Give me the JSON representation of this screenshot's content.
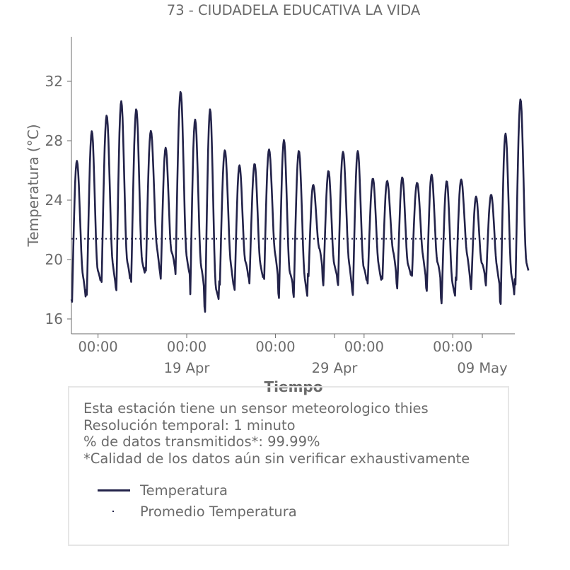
{
  "chart_data": {
    "type": "line",
    "title": "73 - CIUDADELA EDUCATIVA LA VIDA",
    "xlabel": "Tiempo",
    "ylabel": "Temperatura (°C)",
    "ylim": [
      15,
      35
    ],
    "yticks": [
      16,
      20,
      24,
      28,
      32
    ],
    "x_ticks": [
      {
        "day": 4,
        "time": "00:00",
        "date": ""
      },
      {
        "day": 10,
        "time": "00:00",
        "date": "19 Apr"
      },
      {
        "day": 16,
        "time": "00:00",
        "date": ""
      },
      {
        "day": 20,
        "time": "",
        "date": "29 Apr"
      },
      {
        "day": 22,
        "time": "00:00",
        "date": ""
      },
      {
        "day": 28,
        "time": "00:00",
        "date": ""
      },
      {
        "day": 30,
        "time": "",
        "date": "09 May"
      }
    ],
    "xlim": [
      2.2,
      32.2
    ],
    "grid": false,
    "series": [
      {
        "name": "Temperatura",
        "color": "#23234a",
        "daily_min_max": [
          [
            17.0,
            26.8
          ],
          [
            17.8,
            28.4
          ],
          [
            18.2,
            29.9
          ],
          [
            18.0,
            30.6
          ],
          [
            18.5,
            30.0
          ],
          [
            19.0,
            28.9
          ],
          [
            18.9,
            27.3
          ],
          [
            18.8,
            31.4
          ],
          [
            17.6,
            29.5
          ],
          [
            16.6,
            29.9
          ],
          [
            18.0,
            27.6
          ],
          [
            18.1,
            26.2
          ],
          [
            18.3,
            26.4
          ],
          [
            18.5,
            27.6
          ],
          [
            17.6,
            27.8
          ],
          [
            17.2,
            27.5
          ],
          [
            18.9,
            25.0
          ],
          [
            18.3,
            25.8
          ],
          [
            18.0,
            27.5
          ],
          [
            17.8,
            27.1
          ],
          [
            18.2,
            25.5
          ],
          [
            18.6,
            25.4
          ],
          [
            18.2,
            25.3
          ],
          [
            18.6,
            25.4
          ],
          [
            18.0,
            25.6
          ],
          [
            17.0,
            25.2
          ],
          [
            18.4,
            25.6
          ],
          [
            18.2,
            24.0
          ],
          [
            18.0,
            24.5
          ],
          [
            17.0,
            28.5
          ],
          [
            18.4,
            30.6
          ]
        ]
      },
      {
        "name": "Promedio Temperatura",
        "color": "#23234a",
        "value": 21.4
      }
    ]
  },
  "info": {
    "line1": "Esta estación tiene un sensor meteorologico thies",
    "line2": "Resolución temporal: 1 minuto",
    "line3": "% de datos transmitidos*: 99.99%",
    "line4": "*Calidad de los datos aún sin verificar exhaustivamente"
  },
  "legend": {
    "temp_label": "Temperatura",
    "avg_label": "Promedio Temperatura"
  }
}
